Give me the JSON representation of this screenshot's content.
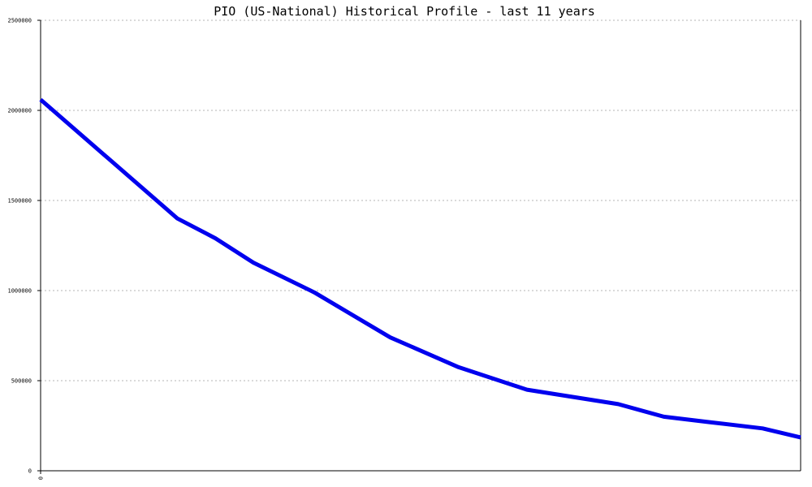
{
  "chart_data": {
    "type": "line",
    "title": "PIO (US-National) Historical Profile - last 11 years",
    "xlabel": "",
    "ylabel": "",
    "ylim": [
      0,
      2500000
    ],
    "yticks": [
      0,
      500000,
      1000000,
      1500000,
      2000000,
      2500000
    ],
    "ytick_labels": [
      "0",
      "500000",
      "1000000",
      "1500000",
      "2000000",
      "2500000"
    ],
    "xtick_labels": [
      "0"
    ],
    "grid": true,
    "line_color": "#0000ee",
    "series": [
      {
        "x": [
          0,
          0.9,
          1.8,
          2.3,
          2.8,
          3.6,
          4.6,
          5.5,
          6.4,
          7.6,
          8.2,
          8.8,
          9.5,
          10
        ],
        "values": [
          2060000,
          1730000,
          1400000,
          1290000,
          1155000,
          990000,
          740000,
          575000,
          450000,
          370000,
          300000,
          270000,
          235000,
          185000
        ]
      }
    ]
  }
}
